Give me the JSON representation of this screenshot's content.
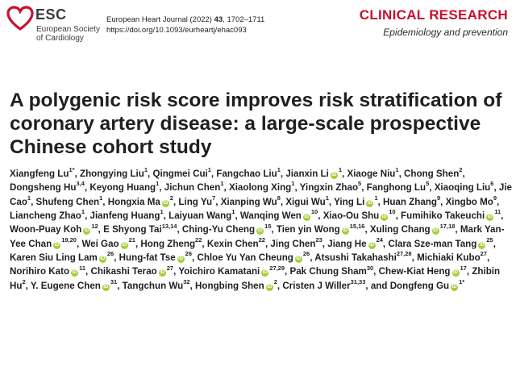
{
  "header": {
    "logo_name": "ESC",
    "logo_sub": [
      "European Society",
      "of Cardiology"
    ],
    "journal_line_prefix": "European Heart Journal (2022) ",
    "journal_volume": "43",
    "journal_pages": ", 1702–1711",
    "doi": "https://doi.org/10.1093/eurheartj/ehac093",
    "section": "CLINICAL RESEARCH",
    "subsection": "Epidemiology and prevention",
    "logo_color": "#c8102e",
    "orcid_color": "#a6ce39"
  },
  "title": "A polygenic risk score improves risk stratification of coronary artery disease: a large-scale prospective Chinese cohort study",
  "authors": [
    {
      "name": "Xiangfeng Lu",
      "aff": "1",
      "star": true
    },
    {
      "name": "Zhongying Liu",
      "aff": "1"
    },
    {
      "name": "Qingmei Cui",
      "aff": "1"
    },
    {
      "name": "Fangchao Liu",
      "aff": "1"
    },
    {
      "name": "Jianxin Li",
      "aff": "1",
      "orcid": true
    },
    {
      "name": "Xiaoge Niu",
      "aff": "1"
    },
    {
      "name": "Chong Shen",
      "aff": "2"
    },
    {
      "name": "Dongsheng Hu",
      "aff": "3,4"
    },
    {
      "name": "Keyong Huang",
      "aff": "1"
    },
    {
      "name": "Jichun Chen",
      "aff": "1"
    },
    {
      "name": "Xiaolong Xing",
      "aff": "1"
    },
    {
      "name": "Yingxin Zhao",
      "aff": "5"
    },
    {
      "name": "Fanghong Lu",
      "aff": "5"
    },
    {
      "name": "Xiaoqing Liu",
      "aff": "6"
    },
    {
      "name": "Jie Cao",
      "aff": "1"
    },
    {
      "name": "Shufeng Chen",
      "aff": "1"
    },
    {
      "name": "Hongxia Ma",
      "aff": "2",
      "orcid": true
    },
    {
      "name": "Ling Yu",
      "aff": "7"
    },
    {
      "name": "Xianping Wu",
      "aff": "8"
    },
    {
      "name": "Xigui Wu",
      "aff": "1"
    },
    {
      "name": "Ying Li",
      "aff": "1",
      "orcid": true
    },
    {
      "name": "Huan Zhang",
      "aff": "9"
    },
    {
      "name": "Xingbo Mo",
      "aff": "9"
    },
    {
      "name": "Liancheng Zhao",
      "aff": "1"
    },
    {
      "name": "Jianfeng Huang",
      "aff": "1"
    },
    {
      "name": "Laiyuan Wang",
      "aff": "1"
    },
    {
      "name": "Wanqing Wen",
      "aff": "10",
      "orcid": true
    },
    {
      "name": "Xiao-Ou Shu",
      "aff": "10",
      "orcid": true
    },
    {
      "name": "Fumihiko Takeuchi",
      "aff": "11",
      "orcid": true
    },
    {
      "name": "Woon-Puay Koh",
      "aff": "12",
      "orcid": true
    },
    {
      "name": "E Shyong Tai",
      "aff": "13,14"
    },
    {
      "name": "Ching-Yu Cheng",
      "aff": "15",
      "orcid": true
    },
    {
      "name": "Tien yin Wong",
      "aff": "15,16",
      "orcid": true
    },
    {
      "name": "Xuling Chang",
      "aff": "17,18",
      "orcid": true
    },
    {
      "name": "Mark Yan-Yee Chan",
      "aff": "19,20",
      "orcid": true
    },
    {
      "name": "Wei Gao",
      "aff": "21",
      "orcid": true
    },
    {
      "name": "Hong Zheng",
      "aff": "22"
    },
    {
      "name": "Kexin Chen",
      "aff": "22"
    },
    {
      "name": "Jing Chen",
      "aff": "23"
    },
    {
      "name": "Jiang He",
      "aff": "24",
      "orcid": true
    },
    {
      "name": "Clara Sze-man Tang",
      "aff": "25",
      "orcid": true
    },
    {
      "name": "Karen Siu Ling Lam",
      "aff": "26",
      "orcid": true
    },
    {
      "name": "Hung-fat Tse",
      "aff": "26",
      "orcid": true
    },
    {
      "name": "Chloe Yu Yan Cheung",
      "aff": "26",
      "orcid": true
    },
    {
      "name": "Atsushi Takahashi",
      "aff": "27,28"
    },
    {
      "name": "Michiaki Kubo",
      "aff": "27"
    },
    {
      "name": "Norihiro Kato",
      "aff": "11",
      "orcid": true
    },
    {
      "name": "Chikashi Terao",
      "aff": "27",
      "orcid": true
    },
    {
      "name": "Yoichiro Kamatani",
      "aff": "27,29",
      "orcid": true
    },
    {
      "name": "Pak Chung Sham",
      "aff": "30"
    },
    {
      "name": "Chew-Kiat Heng",
      "aff": "17",
      "orcid": true
    },
    {
      "name": "Zhibin Hu",
      "aff": "2"
    },
    {
      "name": "Y. Eugene Chen",
      "aff": "31",
      "orcid": true
    },
    {
      "name": "Tangchun Wu",
      "aff": "32"
    },
    {
      "name": "Hongbing Shen",
      "aff": "2",
      "orcid": true
    },
    {
      "name": "Cristen J Willer",
      "aff": "31,33"
    },
    {
      "name": "Dongfeng Gu",
      "aff": "1",
      "star": true,
      "orcid": true,
      "last": true
    }
  ]
}
